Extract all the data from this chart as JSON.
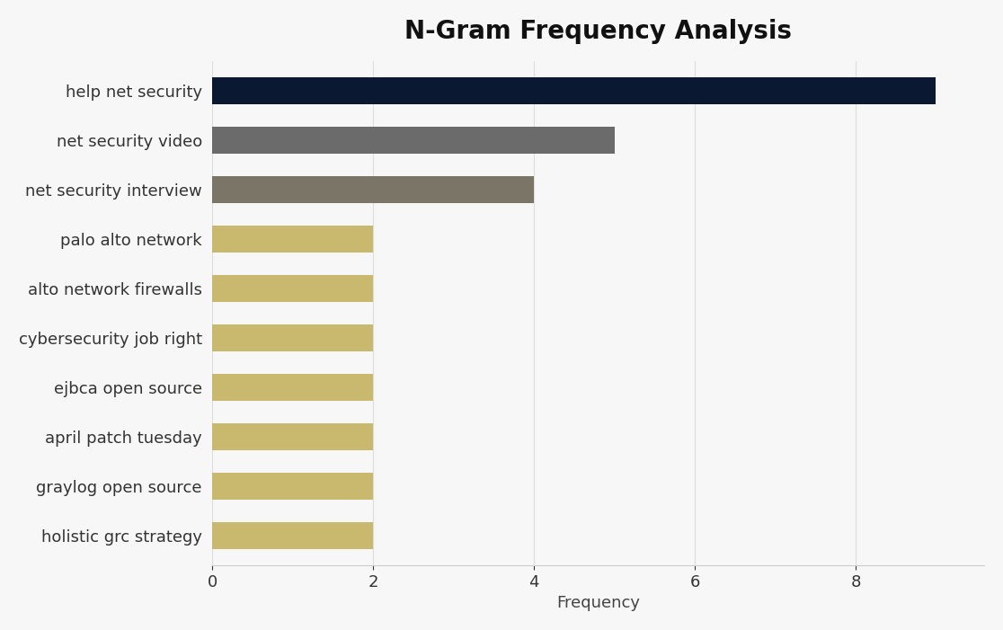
{
  "title": "N-Gram Frequency Analysis",
  "categories": [
    "help net security",
    "net security video",
    "net security interview",
    "palo alto network",
    "alto network firewalls",
    "cybersecurity job right",
    "ejbca open source",
    "april patch tuesday",
    "graylog open source",
    "holistic grc strategy"
  ],
  "values": [
    9,
    5,
    4,
    2,
    2,
    2,
    2,
    2,
    2,
    2
  ],
  "bar_colors": [
    "#0A1931",
    "#6B6B6B",
    "#7A7567",
    "#C8B96E",
    "#C8B96E",
    "#C8B96E",
    "#C8B96E",
    "#C8B96E",
    "#C8B96E",
    "#C8B96E"
  ],
  "xlabel": "Frequency",
  "xlim": [
    0,
    9.6
  ],
  "xticks": [
    0,
    2,
    4,
    6,
    8
  ],
  "background_color": "#F7F7F7",
  "plot_bg_color": "#F2F2F2",
  "title_fontsize": 20,
  "label_fontsize": 13,
  "tick_fontsize": 13,
  "bar_height": 0.55,
  "title_color": "#111111",
  "label_color": "#444444",
  "tick_label_color": "#333333"
}
